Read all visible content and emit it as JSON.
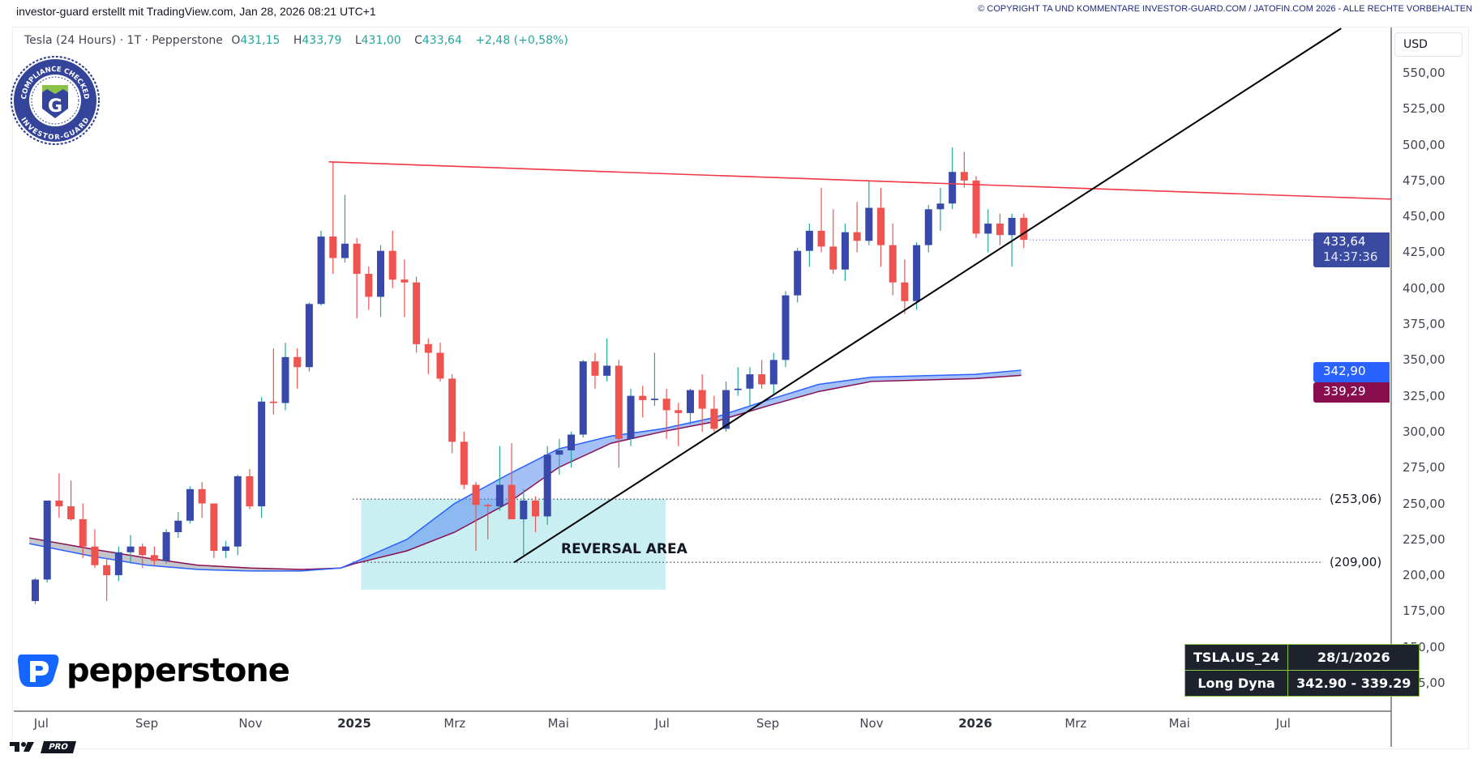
{
  "header": {
    "attribution": "investor-guard erstellt mit TradingView.com, Jan 28, 2026 08:21 UTC+1",
    "copyright": "© COPYRIGHT TA UND KOMMENTARE INVESTOR-GUARD.COM / JATOFIN.COM 2026 - ALLE RECHTE VORBEHALTEN"
  },
  "legend": {
    "symbol": "Tesla (24 Hours) · 1T · Pepperstone",
    "o_label": "O",
    "o": "431,15",
    "h_label": "H",
    "h": "433,79",
    "l_label": "L",
    "l": "431,00",
    "c_label": "C",
    "c": "433,64",
    "change": "+2,48 (+0,58%)"
  },
  "badge": {
    "text_top": "COMPLIANCE CHECKED",
    "text_bottom": "INVESTOR-GUARD",
    "letter": "G"
  },
  "logos": {
    "broker": "pepperstone",
    "platform": "PRO"
  },
  "price_axis": {
    "currency": "USD",
    "last_price": "433,64",
    "countdown": "14:37:36",
    "ma_fast_value": "342,90",
    "ma_slow_value": "339,29"
  },
  "info_table": {
    "symbol": "TSLA.US_24",
    "date": "28/1/2026",
    "indicator": "Long Dyna",
    "values": "342.90 - 339.29"
  },
  "colors": {
    "up_body": "#3949ab",
    "up_wick": "#26a69a",
    "down": "#ef5350",
    "resistance": "#f23645",
    "trendline": "#000000",
    "ma_fast": "#2962ff",
    "ma_slow": "#880e4f",
    "reversal_zone": "#c9eff3",
    "last_price_tag": "#3a4aa1"
  },
  "chart_data": {
    "type": "candlestick",
    "ylim": [
      100,
      575
    ],
    "xlim": [
      "2024-06-20",
      "2026-09-03"
    ],
    "grid": false,
    "y_ticks": [
      "125,00",
      "150,00",
      "175,00",
      "200,00",
      "225,00",
      "250,00",
      "275,00",
      "300,00",
      "325,00",
      "350,00",
      "375,00",
      "400,00",
      "425,00",
      "450,00",
      "475,00",
      "500,00",
      "525,00",
      "550,00"
    ],
    "x_ticks": [
      {
        "date": "2024-07-01",
        "label": "Jul",
        "bold": false
      },
      {
        "date": "2024-09-01",
        "label": "Sep",
        "bold": false
      },
      {
        "date": "2024-11-01",
        "label": "Nov",
        "bold": false
      },
      {
        "date": "2025-01-01",
        "label": "2025",
        "bold": true
      },
      {
        "date": "2025-03-01",
        "label": "Mrz",
        "bold": false
      },
      {
        "date": "2025-05-01",
        "label": "Mai",
        "bold": false
      },
      {
        "date": "2025-07-01",
        "label": "Jul",
        "bold": false
      },
      {
        "date": "2025-09-01",
        "label": "Sep",
        "bold": false
      },
      {
        "date": "2025-11-01",
        "label": "Nov",
        "bold": false
      },
      {
        "date": "2026-01-01",
        "label": "2026",
        "bold": true
      },
      {
        "date": "2026-03-01",
        "label": "Mrz",
        "bold": false
      },
      {
        "date": "2026-05-01",
        "label": "Mai",
        "bold": false
      },
      {
        "date": "2026-07-01",
        "label": "Jul",
        "bold": false
      }
    ],
    "ohlc_columns": [
      "date",
      "open",
      "high",
      "low",
      "close"
    ],
    "ohlc": [
      [
        "2024-06-24",
        182,
        198,
        180,
        197
      ],
      [
        "2024-07-01",
        197,
        252,
        195,
        252
      ],
      [
        "2024-07-08",
        252,
        271,
        240,
        248
      ],
      [
        "2024-07-15",
        248,
        266,
        238,
        239
      ],
      [
        "2024-07-22",
        239,
        250,
        212,
        220
      ],
      [
        "2024-07-29",
        220,
        232,
        205,
        207
      ],
      [
        "2024-08-05",
        207,
        212,
        182,
        200
      ],
      [
        "2024-08-12",
        200,
        220,
        196,
        216
      ],
      [
        "2024-08-19",
        216,
        228,
        208,
        220
      ],
      [
        "2024-08-26",
        220,
        222,
        205,
        214
      ],
      [
        "2024-09-02",
        214,
        220,
        207,
        210
      ],
      [
        "2024-09-09",
        210,
        232,
        208,
        230
      ],
      [
        "2024-09-16",
        230,
        244,
        226,
        238
      ],
      [
        "2024-09-23",
        238,
        262,
        236,
        260
      ],
      [
        "2024-09-30",
        260,
        265,
        240,
        250
      ],
      [
        "2024-10-07",
        250,
        250,
        212,
        217
      ],
      [
        "2024-10-14",
        217,
        224,
        212,
        220
      ],
      [
        "2024-10-21",
        220,
        270,
        214,
        269
      ],
      [
        "2024-10-28",
        269,
        274,
        246,
        248
      ],
      [
        "2024-11-04",
        248,
        324,
        240,
        321
      ],
      [
        "2024-11-11",
        321,
        358,
        312,
        320
      ],
      [
        "2024-11-18",
        320,
        362,
        315,
        352
      ],
      [
        "2024-11-25",
        352,
        358,
        330,
        345
      ],
      [
        "2024-12-02",
        345,
        390,
        342,
        389
      ],
      [
        "2024-12-09",
        389,
        440,
        388,
        436
      ],
      [
        "2024-12-16",
        436,
        488,
        410,
        421
      ],
      [
        "2024-12-23",
        421,
        465,
        418,
        431
      ],
      [
        "2024-12-30",
        431,
        435,
        379,
        410
      ],
      [
        "2025-01-06",
        410,
        415,
        385,
        394
      ],
      [
        "2025-01-13",
        394,
        430,
        380,
        426
      ],
      [
        "2025-01-20",
        426,
        440,
        400,
        406
      ],
      [
        "2025-01-27",
        406,
        420,
        380,
        404
      ],
      [
        "2025-02-03",
        404,
        408,
        355,
        361
      ],
      [
        "2025-02-10",
        361,
        365,
        340,
        355
      ],
      [
        "2025-02-17",
        355,
        362,
        335,
        337
      ],
      [
        "2025-02-24",
        337,
        340,
        285,
        293
      ],
      [
        "2025-03-03",
        293,
        300,
        260,
        263
      ],
      [
        "2025-03-10",
        263,
        265,
        217,
        249
      ],
      [
        "2025-03-17",
        249,
        250,
        225,
        248
      ],
      [
        "2025-03-24",
        248,
        290,
        245,
        263
      ],
      [
        "2025-03-31",
        263,
        292,
        239,
        239
      ],
      [
        "2025-04-07",
        239,
        260,
        214,
        252
      ],
      [
        "2025-04-14",
        252,
        255,
        230,
        241
      ],
      [
        "2025-04-21",
        241,
        290,
        235,
        284
      ],
      [
        "2025-04-28",
        284,
        295,
        270,
        287
      ],
      [
        "2025-05-05",
        287,
        300,
        275,
        298
      ],
      [
        "2025-05-12",
        298,
        350,
        296,
        349
      ],
      [
        "2025-05-19",
        349,
        355,
        330,
        339
      ],
      [
        "2025-05-26",
        339,
        365,
        335,
        346
      ],
      [
        "2025-06-02",
        346,
        350,
        275,
        295
      ],
      [
        "2025-06-09",
        295,
        330,
        290,
        325
      ],
      [
        "2025-06-16",
        325,
        332,
        310,
        322
      ],
      [
        "2025-06-23",
        322,
        355,
        318,
        323
      ],
      [
        "2025-06-30",
        323,
        330,
        295,
        315
      ],
      [
        "2025-07-07",
        315,
        320,
        290,
        313
      ],
      [
        "2025-07-14",
        313,
        330,
        305,
        329
      ],
      [
        "2025-07-21",
        329,
        340,
        300,
        316
      ],
      [
        "2025-07-28",
        316,
        325,
        300,
        302
      ],
      [
        "2025-08-04",
        302,
        335,
        300,
        329
      ],
      [
        "2025-08-11",
        329,
        345,
        325,
        330
      ],
      [
        "2025-08-18",
        330,
        345,
        318,
        340
      ],
      [
        "2025-08-25",
        340,
        350,
        330,
        333
      ],
      [
        "2025-09-01",
        333,
        355,
        325,
        350
      ],
      [
        "2025-09-08",
        350,
        398,
        345,
        395
      ],
      [
        "2025-09-15",
        395,
        428,
        390,
        426
      ],
      [
        "2025-09-22",
        426,
        445,
        415,
        440
      ],
      [
        "2025-09-29",
        440,
        470,
        425,
        429
      ],
      [
        "2025-10-06",
        429,
        455,
        410,
        413
      ],
      [
        "2025-10-13",
        413,
        445,
        405,
        439
      ],
      [
        "2025-10-20",
        439,
        460,
        425,
        433
      ],
      [
        "2025-10-27",
        433,
        475,
        430,
        456
      ],
      [
        "2025-11-03",
        456,
        470,
        415,
        430
      ],
      [
        "2025-11-10",
        430,
        445,
        395,
        404
      ],
      [
        "2025-11-17",
        404,
        420,
        382,
        391
      ],
      [
        "2025-11-24",
        391,
        432,
        385,
        430
      ],
      [
        "2025-12-01",
        430,
        458,
        425,
        455
      ],
      [
        "2025-12-08",
        455,
        470,
        440,
        459
      ],
      [
        "2025-12-15",
        459,
        498,
        455,
        481
      ],
      [
        "2025-12-22",
        481,
        495,
        470,
        475
      ],
      [
        "2025-12-29",
        475,
        478,
        435,
        438
      ],
      [
        "2026-01-05",
        438,
        455,
        425,
        445
      ],
      [
        "2026-01-12",
        445,
        452,
        430,
        437
      ],
      [
        "2026-01-19",
        437,
        452,
        415,
        449
      ],
      [
        "2026-01-26",
        449,
        452,
        428,
        433.64
      ]
    ],
    "moving_averages": {
      "dates": [
        "2024-06-24",
        "2024-08-01",
        "2024-09-01",
        "2024-10-01",
        "2024-11-01",
        "2024-12-01",
        "2024-12-24",
        "2025-01-01",
        "2025-02-01",
        "2025-03-01",
        "2025-04-01",
        "2025-05-01",
        "2025-06-01",
        "2025-07-01",
        "2025-08-01",
        "2025-09-01",
        "2025-10-01",
        "2025-11-01",
        "2025-12-01",
        "2026-01-01",
        "2026-01-28"
      ],
      "fast": [
        222,
        213,
        207,
        204,
        203,
        203,
        205,
        209,
        225,
        250,
        270,
        288,
        297,
        302,
        310,
        322,
        333,
        338,
        339,
        340,
        342.9
      ],
      "slow": [
        226,
        218,
        212,
        207,
        205,
        204,
        205,
        208,
        217,
        230,
        250,
        275,
        292,
        300,
        307,
        318,
        328,
        335,
        336,
        337,
        339.29
      ]
    },
    "resistance_line": {
      "from": [
        "2024-12-17",
        488
      ],
      "to": [
        "2026-09-03",
        462
      ]
    },
    "trendline": {
      "from": [
        "2025-04-05",
        209
      ],
      "to": [
        "2026-08-04",
        581
      ]
    },
    "reversal_zone": {
      "label": "REVERSAL AREA",
      "from_date": "2025-01-05",
      "to_date": "2025-07-03",
      "high": 253,
      "low": 190
    },
    "levels": [
      {
        "value": 253.06,
        "label": "(253,06)",
        "from_date": "2024-12-31"
      },
      {
        "value": 209.0,
        "label": "(209,00)",
        "from_date": "2024-12-31"
      }
    ]
  }
}
